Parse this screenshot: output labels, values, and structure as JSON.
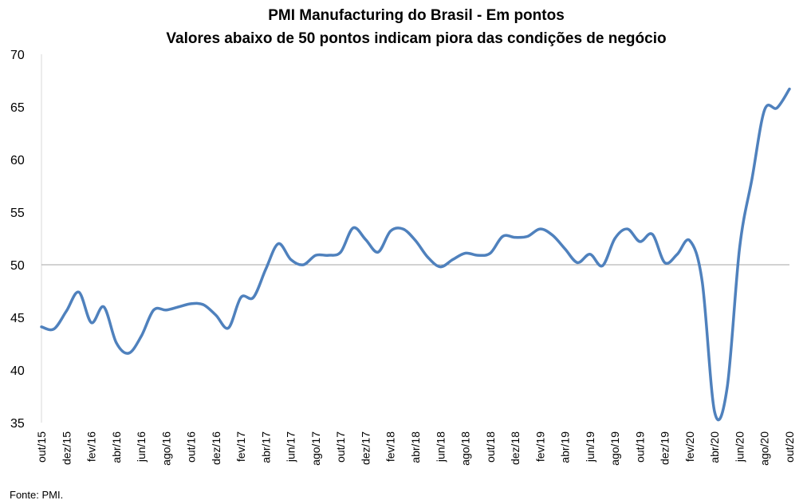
{
  "chart_data": {
    "type": "line",
    "title": "PMI Manufacturing do Brasil - Em pontos",
    "subtitle": "Valores abaixo de 50 pontos indicam piora das condições de negócio",
    "xlabel": "",
    "ylabel": "",
    "ylim": [
      35,
      70
    ],
    "yticks": [
      35,
      40,
      45,
      50,
      55,
      60,
      65,
      70
    ],
    "reference_line": 50,
    "grid": false,
    "legend": "none",
    "line_color": "#4f81bd",
    "reference_color": "#a6a6a6",
    "x_tick_labels": [
      "out/15",
      "dez/15",
      "fev/16",
      "abr/16",
      "jun/16",
      "ago/16",
      "out/16",
      "dez/16",
      "fev/17",
      "abr/17",
      "jun/17",
      "ago/17",
      "out/17",
      "dez/17",
      "fev/18",
      "abr/18",
      "jun/18",
      "ago/18",
      "out/18",
      "dez/18",
      "fev/19",
      "abr/19",
      "jun/19",
      "ago/19",
      "out/19",
      "dez/19",
      "fev/20",
      "abr/20",
      "jun/20",
      "ago/20",
      "out/20"
    ],
    "x": [
      "out/15",
      "nov/15",
      "dez/15",
      "jan/16",
      "fev/16",
      "mar/16",
      "abr/16",
      "mai/16",
      "jun/16",
      "jul/16",
      "ago/16",
      "set/16",
      "out/16",
      "nov/16",
      "dez/16",
      "jan/17",
      "fev/17",
      "mar/17",
      "abr/17",
      "mai/17",
      "jun/17",
      "jul/17",
      "ago/17",
      "set/17",
      "out/17",
      "nov/17",
      "dez/17",
      "jan/18",
      "fev/18",
      "mar/18",
      "abr/18",
      "mai/18",
      "jun/18",
      "jul/18",
      "ago/18",
      "set/18",
      "out/18",
      "nov/18",
      "dez/18",
      "jan/19",
      "fev/19",
      "mar/19",
      "abr/19",
      "mai/19",
      "jun/19",
      "jul/19",
      "ago/19",
      "set/19",
      "out/19",
      "nov/19",
      "dez/19",
      "jan/20",
      "fev/20",
      "mar/20",
      "abr/20",
      "mai/20",
      "jun/20",
      "jul/20",
      "ago/20",
      "set/20",
      "out/20"
    ],
    "series": [
      {
        "values": [
          44.1,
          43.9,
          45.6,
          47.4,
          44.5,
          46.0,
          42.6,
          41.6,
          43.2,
          45.7,
          45.7,
          46.0,
          46.3,
          46.2,
          45.2,
          44.0,
          46.9,
          46.9,
          49.6,
          52.0,
          50.5,
          50.0,
          50.9,
          50.9,
          51.2,
          53.5,
          52.4,
          51.2,
          53.2,
          53.4,
          52.3,
          50.7,
          49.8,
          50.5,
          51.1,
          50.9,
          51.1,
          52.7,
          52.6,
          52.7,
          53.4,
          52.8,
          51.5,
          50.2,
          51.0,
          49.9,
          52.5,
          53.4,
          52.2,
          52.9,
          50.2,
          51.0,
          52.3,
          48.4,
          36.0,
          38.3,
          51.6,
          58.2,
          64.7,
          64.9,
          66.7
        ]
      }
    ],
    "source_note": "Fonte: PMI."
  }
}
